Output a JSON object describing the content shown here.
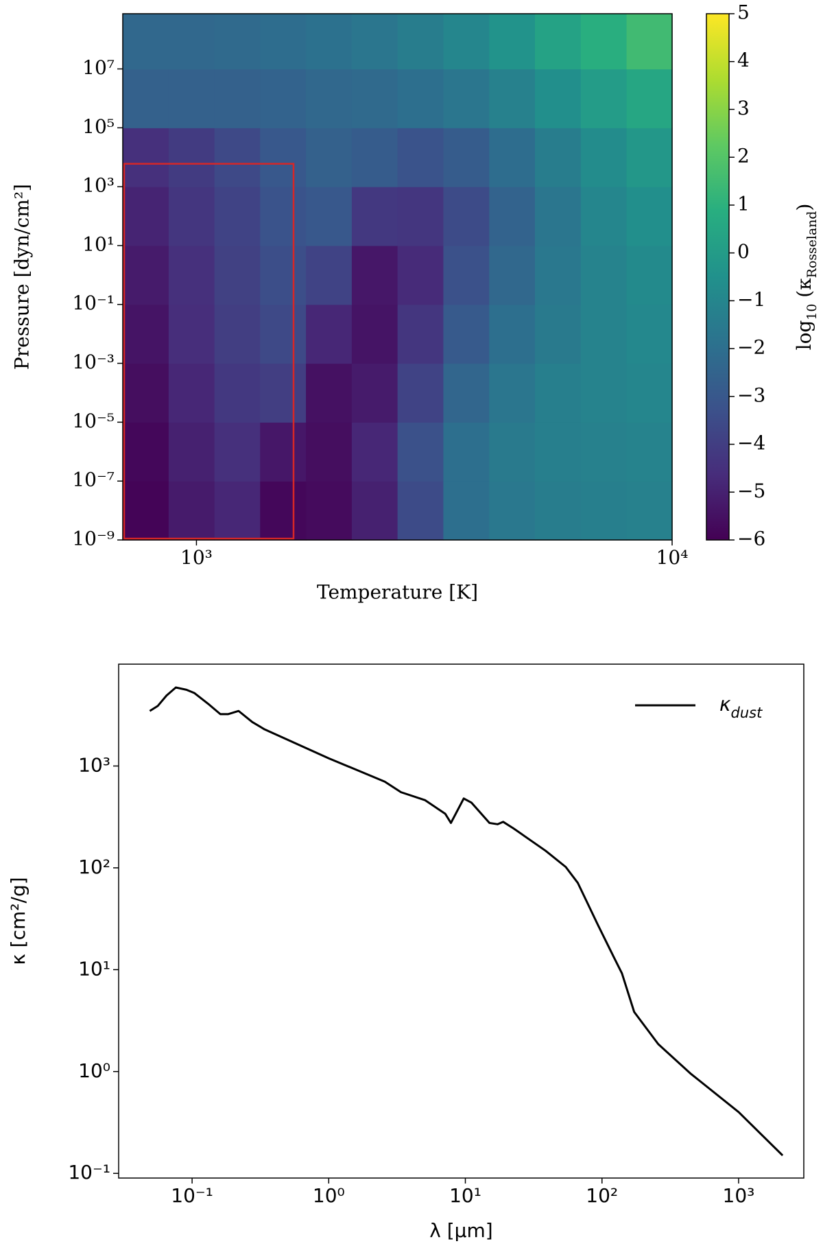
{
  "chart_data": [
    {
      "type": "heatmap",
      "xlabel": "Temperature [K]",
      "ylabel": "Pressure [dyn/cm²]",
      "colorbar_label": [
        "log",
        "10",
        " (κ",
        "Rosseland",
        ")"
      ],
      "xscale": "log",
      "yscale": "log",
      "colormap": "viridis",
      "xbins": [
        700,
        874,
        1091,
        1361,
        1699,
        2121,
        2647,
        3304,
        4125,
        5148,
        6426,
        8021,
        10000
      ],
      "ybins": [
        1e-09,
        1e-07,
        1e-05,
        0.001,
        0.1,
        10,
        1000,
        100000.0,
        10000000.0,
        750000000.0
      ],
      "values": [
        [
          -5.9,
          -5.2,
          -4.8,
          -5.8,
          -5.7,
          -5.0,
          -3.5,
          -2.0,
          -1.6,
          -1.4,
          -1.3,
          -1.2
        ],
        [
          -5.8,
          -5.0,
          -4.5,
          -5.3,
          -5.6,
          -4.8,
          -3.3,
          -2.0,
          -1.5,
          -1.3,
          -1.2,
          -1.1
        ],
        [
          -5.6,
          -4.8,
          -4.2,
          -4.0,
          -5.5,
          -5.2,
          -3.8,
          -2.4,
          -1.7,
          -1.3,
          -1.1,
          -1.0
        ],
        [
          -5.4,
          -4.6,
          -4.0,
          -3.6,
          -4.8,
          -5.4,
          -4.3,
          -2.9,
          -2.0,
          -1.5,
          -1.1,
          -0.9
        ],
        [
          -5.2,
          -4.5,
          -3.9,
          -3.4,
          -3.8,
          -5.3,
          -4.7,
          -3.3,
          -2.3,
          -1.6,
          -1.1,
          -0.8
        ],
        [
          -4.9,
          -4.3,
          -3.8,
          -3.2,
          -3.0,
          -4.2,
          -4.3,
          -3.5,
          -2.5,
          -1.7,
          -1.0,
          -0.6
        ],
        [
          -4.5,
          -4.1,
          -3.6,
          -3.0,
          -2.6,
          -2.8,
          -3.2,
          -2.8,
          -2.1,
          -1.4,
          -0.7,
          -0.2
        ],
        [
          -2.6,
          -2.6,
          -2.6,
          -2.5,
          -2.3,
          -2.2,
          -2.0,
          -1.7,
          -1.2,
          -0.6,
          0.0,
          0.5
        ],
        [
          -2.3,
          -2.3,
          -2.2,
          -2.1,
          -1.9,
          -1.7,
          -1.4,
          -1.0,
          -0.4,
          0.3,
          0.9,
          1.5
        ]
      ],
      "xlim": [
        700,
        10000
      ],
      "ylim": [
        1e-09,
        750000000.0
      ],
      "xticks": [
        {
          "value": 1000,
          "label": "10³"
        },
        {
          "value": 10000,
          "label": "10⁴"
        }
      ],
      "yticks": [
        {
          "value": 1e-09,
          "label": "10⁻⁹"
        },
        {
          "value": 1e-07,
          "label": "10⁻⁷"
        },
        {
          "value": 1e-05,
          "label": "10⁻⁵"
        },
        {
          "value": 0.001,
          "label": "10⁻³"
        },
        {
          "value": 0.1,
          "label": "10⁻¹"
        },
        {
          "value": 10,
          "label": "10¹"
        },
        {
          "value": 1000,
          "label": "10³"
        },
        {
          "value": 100000.0,
          "label": "10⁵"
        },
        {
          "value": 10000000.0,
          "label": "10⁷"
        }
      ],
      "clim": [
        -6,
        5
      ],
      "cticks": [
        {
          "value": -6,
          "label": "−6"
        },
        {
          "value": -5,
          "label": "−5"
        },
        {
          "value": -4,
          "label": "−4"
        },
        {
          "value": -3,
          "label": "−3"
        },
        {
          "value": -2,
          "label": "−2"
        },
        {
          "value": -1,
          "label": "−1"
        },
        0,
        1,
        2,
        3,
        4,
        5
      ],
      "rectangle": {
        "x": [
          700,
          1600
        ],
        "y": [
          1e-09,
          6000
        ],
        "color": "#d62728"
      }
    },
    {
      "type": "line",
      "xlabel": "λ [μm]",
      "ylabel": "κ [cm²/g]",
      "xscale": "log",
      "yscale": "log",
      "x": [
        0.049,
        0.056,
        0.065,
        0.076,
        0.091,
        0.104,
        0.131,
        0.161,
        0.184,
        0.219,
        0.276,
        0.339,
        1.0,
        2.57,
        3.38,
        5.08,
        7.13,
        7.84,
        9.73,
        11.1,
        15,
        17.2,
        18.9,
        22.5,
        38.7,
        54.3,
        66.6,
        93.4,
        122,
        140,
        172,
        258,
        443,
        1000,
        2100
      ],
      "series": [
        {
          "name": [
            "κ",
            "dust"
          ],
          "color": "#000000",
          "values": [
            3470,
            3880,
            4920,
            5900,
            5600,
            5200,
            4080,
            3230,
            3230,
            3470,
            2700,
            2290,
            1190,
            702,
            553,
            461,
            339,
            276,
            480,
            436,
            276,
            268,
            283,
            244,
            147,
            102,
            71,
            27.5,
            13.3,
            9.2,
            3.85,
            1.86,
            0.96,
            0.4,
            0.15
          ]
        }
      ],
      "legend": "upper right",
      "xlim": [
        0.029,
        3000
      ],
      "ylim": [
        0.09,
        10000
      ],
      "xticks": [
        {
          "value": 0.1,
          "label": "10⁻¹"
        },
        {
          "value": 1,
          "label": "10⁰"
        },
        {
          "value": 10,
          "label": "10¹"
        },
        {
          "value": 100,
          "label": "10²"
        },
        {
          "value": 1000,
          "label": "10³"
        }
      ],
      "yticks": [
        {
          "value": 0.1,
          "label": "10⁻¹"
        },
        {
          "value": 1,
          "label": "10⁰"
        },
        {
          "value": 10,
          "label": "10¹"
        },
        {
          "value": 100,
          "label": "10²"
        },
        {
          "value": 1000,
          "label": "10³"
        }
      ]
    }
  ]
}
